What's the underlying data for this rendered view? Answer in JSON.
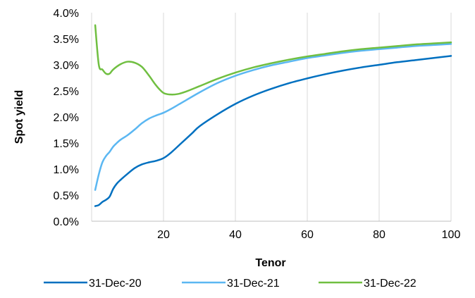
{
  "chart_data": {
    "type": "line",
    "xlabel": "Tenor",
    "ylabel": "Spot yield",
    "xlim": [
      0,
      100
    ],
    "ylim": [
      0,
      0.04
    ],
    "x_ticks": [
      20,
      40,
      60,
      80,
      100
    ],
    "x_tick_labels": [
      "20",
      "40",
      "60",
      "80",
      "100"
    ],
    "y_ticks": [
      0,
      0.005,
      0.01,
      0.015,
      0.02,
      0.025,
      0.03,
      0.035,
      0.04
    ],
    "y_tick_labels": [
      "0.0%",
      "0.5%",
      "1.0%",
      "1.5%",
      "2.0%",
      "2.5%",
      "3.0%",
      "3.5%",
      "4.0%"
    ],
    "grid": "vertical",
    "legend_position": "bottom",
    "series": [
      {
        "name": "31-Dec-20",
        "color": "#0070c0",
        "points": [
          [
            1,
            0.0029
          ],
          [
            2,
            0.0031
          ],
          [
            3,
            0.0037
          ],
          [
            4,
            0.0041
          ],
          [
            5,
            0.0047
          ],
          [
            6,
            0.0062
          ],
          [
            7,
            0.0072
          ],
          [
            8,
            0.0079
          ],
          [
            10,
            0.0091
          ],
          [
            12,
            0.0102
          ],
          [
            14,
            0.0109
          ],
          [
            16,
            0.0113
          ],
          [
            18,
            0.0116
          ],
          [
            20,
            0.0121
          ],
          [
            22,
            0.0131
          ],
          [
            25,
            0.015
          ],
          [
            28,
            0.0169
          ],
          [
            30,
            0.0182
          ],
          [
            35,
            0.0205
          ],
          [
            40,
            0.0225
          ],
          [
            45,
            0.0241
          ],
          [
            50,
            0.0254
          ],
          [
            55,
            0.0265
          ],
          [
            60,
            0.0274
          ],
          [
            65,
            0.0282
          ],
          [
            70,
            0.0289
          ],
          [
            75,
            0.0295
          ],
          [
            80,
            0.03
          ],
          [
            85,
            0.0305
          ],
          [
            90,
            0.0309
          ],
          [
            95,
            0.0313
          ],
          [
            100,
            0.0317
          ]
        ]
      },
      {
        "name": "31-Dec-21",
        "color": "#5bb7f2",
        "points": [
          [
            1,
            0.006
          ],
          [
            2,
            0.009
          ],
          [
            3,
            0.0113
          ],
          [
            4,
            0.0125
          ],
          [
            5,
            0.0133
          ],
          [
            6,
            0.0143
          ],
          [
            7,
            0.015
          ],
          [
            8,
            0.0156
          ],
          [
            10,
            0.0165
          ],
          [
            12,
            0.0176
          ],
          [
            14,
            0.0188
          ],
          [
            16,
            0.0197
          ],
          [
            18,
            0.0203
          ],
          [
            20,
            0.0208
          ],
          [
            22,
            0.0215
          ],
          [
            25,
            0.0227
          ],
          [
            30,
            0.0247
          ],
          [
            35,
            0.0265
          ],
          [
            40,
            0.0279
          ],
          [
            45,
            0.029
          ],
          [
            50,
            0.0299
          ],
          [
            55,
            0.0306
          ],
          [
            60,
            0.0313
          ],
          [
            65,
            0.0318
          ],
          [
            70,
            0.0323
          ],
          [
            75,
            0.0327
          ],
          [
            80,
            0.033
          ],
          [
            85,
            0.0333
          ],
          [
            90,
            0.0336
          ],
          [
            95,
            0.0338
          ],
          [
            100,
            0.034
          ]
        ]
      },
      {
        "name": "31-Dec-22",
        "color": "#70bf41",
        "points": [
          [
            1,
            0.0376
          ],
          [
            2,
            0.03
          ],
          [
            3,
            0.0291
          ],
          [
            4,
            0.0283
          ],
          [
            5,
            0.0283
          ],
          [
            6,
            0.0291
          ],
          [
            8,
            0.0301
          ],
          [
            10,
            0.0306
          ],
          [
            12,
            0.0304
          ],
          [
            14,
            0.0296
          ],
          [
            16,
            0.0279
          ],
          [
            18,
            0.026
          ],
          [
            20,
            0.0246
          ],
          [
            22,
            0.0243
          ],
          [
            24,
            0.0244
          ],
          [
            26,
            0.0248
          ],
          [
            30,
            0.0259
          ],
          [
            35,
            0.0273
          ],
          [
            40,
            0.0285
          ],
          [
            45,
            0.0295
          ],
          [
            50,
            0.0303
          ],
          [
            55,
            0.031
          ],
          [
            60,
            0.0316
          ],
          [
            65,
            0.0321
          ],
          [
            70,
            0.0326
          ],
          [
            75,
            0.033
          ],
          [
            80,
            0.0333
          ],
          [
            85,
            0.0336
          ],
          [
            90,
            0.0339
          ],
          [
            95,
            0.0341
          ],
          [
            100,
            0.0343
          ]
        ]
      }
    ]
  }
}
